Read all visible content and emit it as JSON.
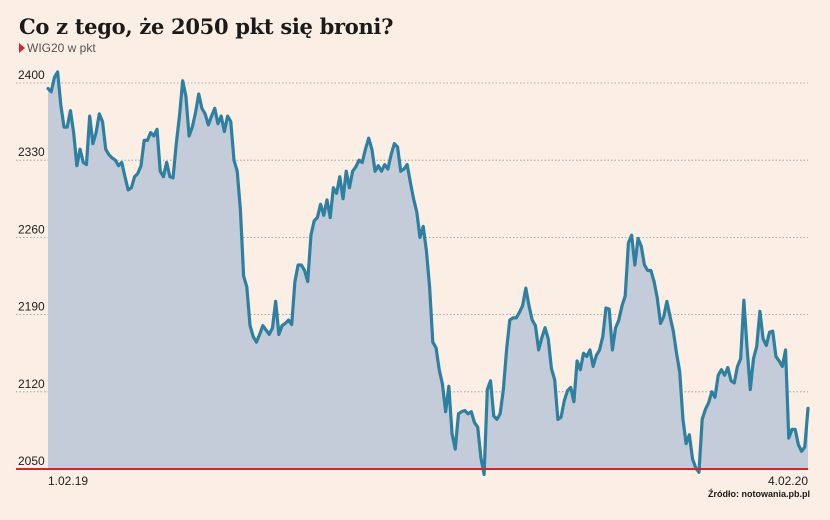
{
  "header": {
    "title": "Co z tego, że 2050 pkt się broni?",
    "subtitle": "WIG20 w pkt"
  },
  "source": "Źródło: notowania.pb.pl",
  "colors": {
    "line": "#2f7fa0",
    "area": "#c5ccd9",
    "baseline": "#d6262b",
    "grid": "#999999",
    "background": "#fbeee4"
  },
  "chart_data": {
    "type": "area",
    "title": "Co z tego, że 2050 pkt się broni?",
    "ylabel": "WIG20 w pkt",
    "xlabel": "",
    "ylim": [
      2050,
      2400
    ],
    "yticks": [
      2400,
      2330,
      2260,
      2190,
      2120,
      2050
    ],
    "x_start_label": "1.02.19",
    "x_end_label": "4.02.20",
    "grid": true,
    "baseline_value": 2050,
    "series": [
      {
        "values": [
          2395,
          2392,
          2405,
          2410,
          2380,
          2360,
          2360,
          2375,
          2355,
          2325,
          2340,
          2328,
          2326,
          2370,
          2345,
          2355,
          2372,
          2365,
          2340,
          2335,
          2332,
          2330,
          2325,
          2328,
          2315,
          2303,
          2305,
          2315,
          2318,
          2325,
          2348,
          2348,
          2355,
          2352,
          2358,
          2320,
          2315,
          2328,
          2315,
          2314,
          2345,
          2370,
          2402,
          2388,
          2352,
          2360,
          2373,
          2390,
          2377,
          2372,
          2362,
          2370,
          2377,
          2363,
          2370,
          2356,
          2370,
          2365,
          2330,
          2320,
          2285,
          2225,
          2215,
          2180,
          2170,
          2165,
          2172,
          2180,
          2176,
          2172,
          2178,
          2202,
          2172,
          2180,
          2182,
          2185,
          2181,
          2220,
          2235,
          2235,
          2230,
          2220,
          2262,
          2275,
          2278,
          2290,
          2280,
          2294,
          2278,
          2305,
          2300,
          2315,
          2295,
          2320,
          2305,
          2320,
          2324,
          2330,
          2328,
          2340,
          2350,
          2340,
          2320,
          2325,
          2320,
          2326,
          2322,
          2335,
          2345,
          2342,
          2320,
          2322,
          2326,
          2310,
          2295,
          2283,
          2260,
          2270,
          2248,
          2215,
          2165,
          2160,
          2140,
          2127,
          2102,
          2125,
          2082,
          2068,
          2100,
          2102,
          2103,
          2100,
          2102,
          2092,
          2088,
          2060,
          2045,
          2122,
          2130,
          2098,
          2095,
          2100,
          2122,
          2158,
          2185,
          2187,
          2187,
          2192,
          2198,
          2214,
          2198,
          2185,
          2180,
          2158,
          2169,
          2178,
          2168,
          2141,
          2131,
          2095,
          2097,
          2112,
          2121,
          2124,
          2111,
          2148,
          2140,
          2155,
          2152,
          2158,
          2143,
          2153,
          2158,
          2170,
          2196,
          2195,
          2158,
          2178,
          2185,
          2198,
          2207,
          2255,
          2262,
          2235,
          2259,
          2252,
          2235,
          2230,
          2230,
          2220,
          2205,
          2182,
          2188,
          2202,
          2188,
          2175,
          2155,
          2138,
          2095,
          2073,
          2081,
          2059,
          2051,
          2047,
          2095,
          2104,
          2110,
          2120,
          2115,
          2135,
          2140,
          2135,
          2142,
          2130,
          2128,
          2143,
          2150,
          2203,
          2160,
          2122,
          2150,
          2161,
          2193,
          2168,
          2162,
          2174,
          2175,
          2152,
          2148,
          2143,
          2158,
          2078,
          2086,
          2086,
          2072,
          2066,
          2070,
          2105
        ]
      }
    ]
  }
}
